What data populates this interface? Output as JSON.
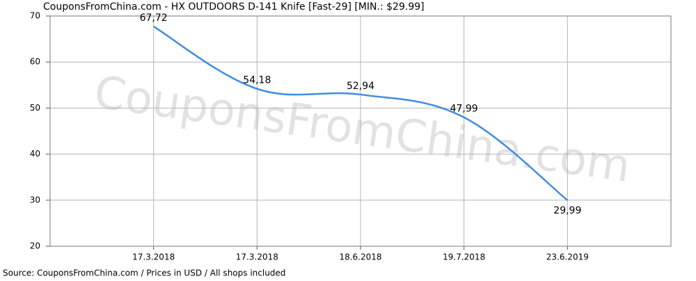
{
  "chart_data": {
    "type": "line",
    "title": "CouponsFromChina.com - HX OUTDOORS D-141 Knife [Fast-29] [MIN.: $29.99]",
    "watermark": "CouponsFromChina.com",
    "source": "Source: CouponsFromChina.com / Prices in USD / All shops included",
    "categories": [
      "17.3.2018",
      "17.3.2018",
      "18.6.2018",
      "19.7.2018",
      "23.6.2019"
    ],
    "series": [
      {
        "name": "Price",
        "color": "#3d8ce3",
        "values": [
          67.72,
          54.18,
          52.94,
          47.99,
          29.99
        ],
        "value_labels": [
          "67,72",
          "54,18",
          "52,94",
          "47,99",
          "29,99"
        ]
      }
    ],
    "ylim": [
      20,
      70
    ],
    "yticks": [
      20,
      30,
      40,
      50,
      60,
      70
    ],
    "grid": true
  }
}
